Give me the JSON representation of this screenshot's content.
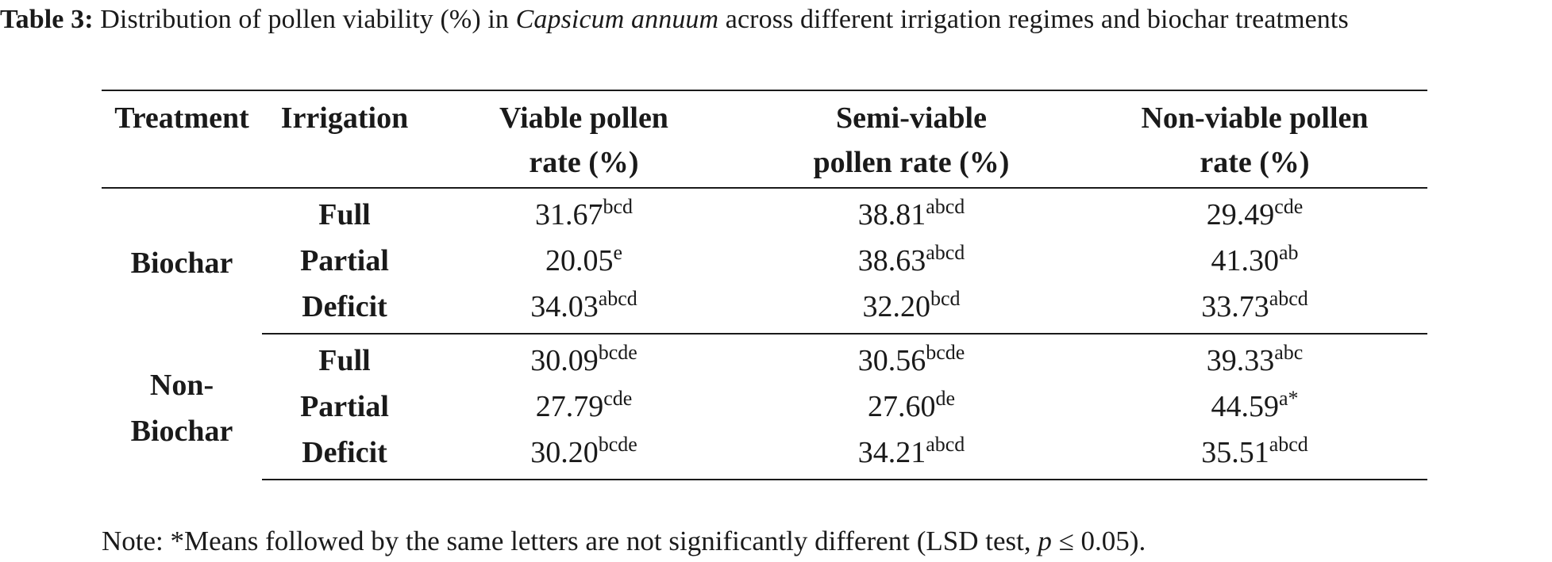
{
  "caption": {
    "label": "Table 3:",
    "text_before": " Distribution of pollen viability (%) in ",
    "species": "Capsicum annuum",
    "text_after": " across different irrigation regimes and biochar treatments"
  },
  "table": {
    "headers": {
      "treatment": "Treatment",
      "irrigation": "Irrigation",
      "viable_l1": "Viable pollen",
      "viable_l2": "rate (%)",
      "semi_l1": "Semi-viable",
      "semi_l2": "pollen rate (%)",
      "nonviable_l1": "Non-viable pollen",
      "nonviable_l2": "rate (%)"
    },
    "groups": [
      {
        "treatment": "Biochar",
        "rows": [
          {
            "irrigation": "Full",
            "viable": "31.67",
            "viable_sup": "bcd",
            "semi": "38.81",
            "semi_sup": "abcd",
            "nonviable": "29.49",
            "nonviable_sup": "cde"
          },
          {
            "irrigation": "Partial",
            "viable": "20.05",
            "viable_sup": "e",
            "semi": "38.63",
            "semi_sup": "abcd",
            "nonviable": "41.30",
            "nonviable_sup": "ab"
          },
          {
            "irrigation": "Deficit",
            "viable": "34.03",
            "viable_sup": "abcd",
            "semi": "32.20",
            "semi_sup": "bcd",
            "nonviable": "33.73",
            "nonviable_sup": "abcd"
          }
        ]
      },
      {
        "treatment": "Non-Biochar",
        "rows": [
          {
            "irrigation": "Full",
            "viable": "30.09",
            "viable_sup": "bcde",
            "semi": "30.56",
            "semi_sup": "bcde",
            "nonviable": "39.33",
            "nonviable_sup": "abc"
          },
          {
            "irrigation": "Partial",
            "viable": "27.79",
            "viable_sup": "cde",
            "semi": "27.60",
            "semi_sup": "de",
            "nonviable": "44.59",
            "nonviable_sup": "a*"
          },
          {
            "irrigation": "Deficit",
            "viable": "30.20",
            "viable_sup": "bcde",
            "semi": "34.21",
            "semi_sup": "abcd",
            "nonviable": "35.51",
            "nonviable_sup": "abcd"
          }
        ]
      }
    ]
  },
  "note": {
    "text_before": "Note: *Means followed by the same letters are not significantly different (LSD test, ",
    "p_symbol": "p",
    "text_after": " ≤ 0.05)."
  }
}
